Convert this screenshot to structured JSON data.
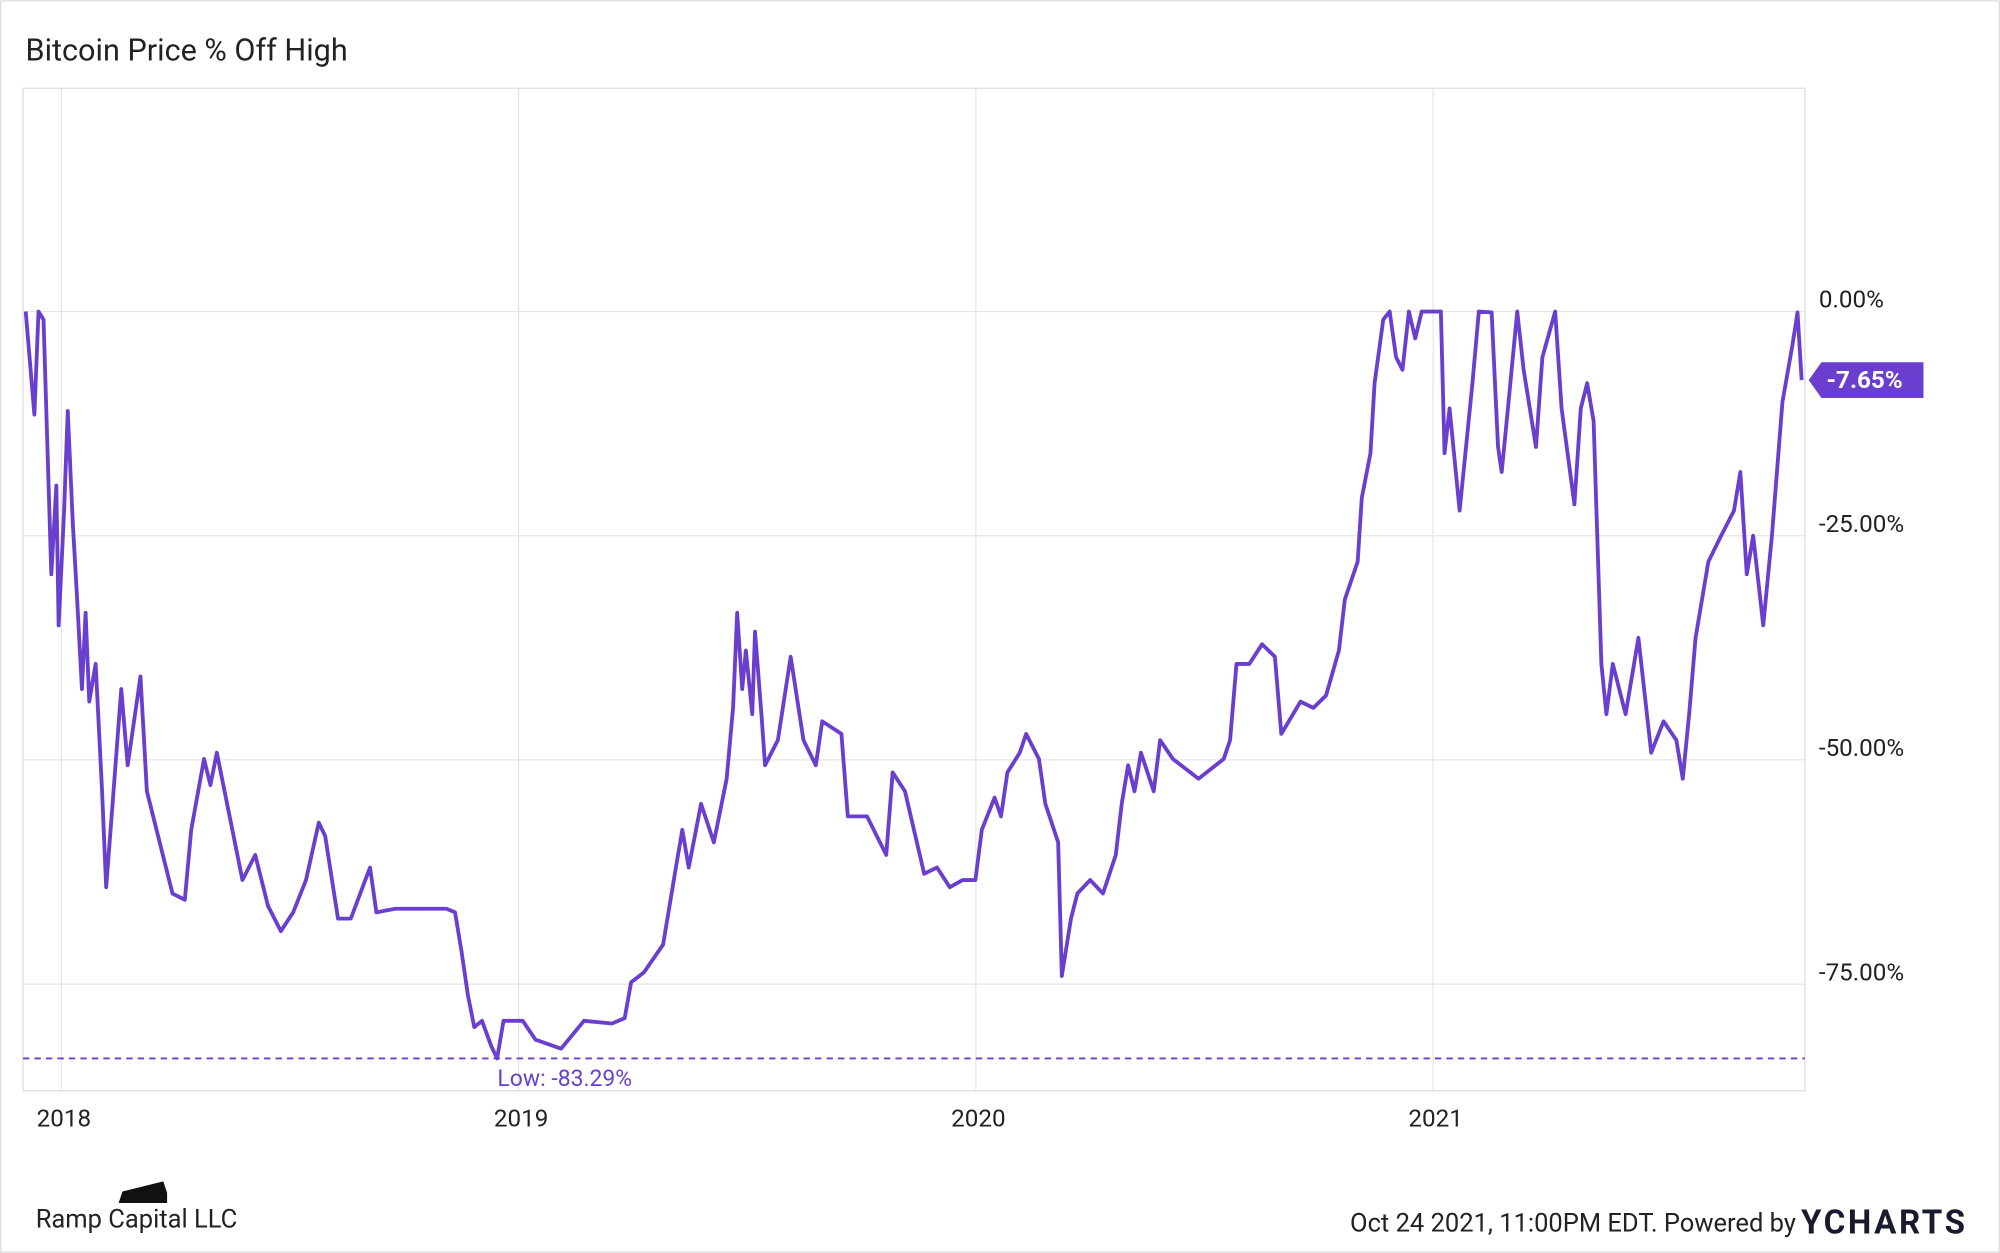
{
  "chart_data": {
    "type": "line",
    "title": "Bitcoin Price % Off High",
    "x": [
      2017.922,
      2017.941,
      2017.95,
      2017.961,
      2017.978,
      2017.989,
      2017.994,
      2018.006,
      2018.014,
      2018.025,
      2018.033,
      2018.045,
      2018.053,
      2018.061,
      2018.075,
      2018.089,
      2018.098,
      2018.112,
      2018.131,
      2018.145,
      2018.173,
      2018.187,
      2018.215,
      2018.243,
      2018.27,
      2018.284,
      2018.312,
      2018.326,
      2018.34,
      2018.368,
      2018.396,
      2018.424,
      2018.452,
      2018.48,
      2018.507,
      2018.535,
      2018.563,
      2018.577,
      2018.605,
      2018.633,
      2018.675,
      2018.689,
      2018.73,
      2018.786,
      2018.842,
      2018.861,
      2018.875,
      2018.889,
      2018.903,
      2018.92,
      2018.94,
      2018.953,
      2018.967,
      2019.009,
      2019.037,
      2019.093,
      2019.143,
      2019.204,
      2019.232,
      2019.246,
      2019.274,
      2019.316,
      2019.344,
      2019.358,
      2019.372,
      2019.399,
      2019.427,
      2019.455,
      2019.469,
      2019.478,
      2019.489,
      2019.497,
      2019.511,
      2019.517,
      2019.531,
      2019.539,
      2019.567,
      2019.595,
      2019.623,
      2019.65,
      2019.664,
      2019.706,
      2019.72,
      2019.762,
      2019.804,
      2019.818,
      2019.845,
      2019.887,
      2019.915,
      2019.943,
      2019.971,
      2019.999,
      2020.013,
      2020.041,
      2020.055,
      2020.069,
      2020.096,
      2020.11,
      2020.138,
      2020.152,
      2020.18,
      2020.188,
      2020.208,
      2020.222,
      2020.25,
      2020.278,
      2020.306,
      2020.319,
      2020.333,
      2020.347,
      2020.361,
      2020.389,
      2020.403,
      2020.431,
      2020.487,
      2020.542,
      2020.556,
      2020.57,
      2020.598,
      2020.626,
      2020.654,
      2020.668,
      2020.71,
      2020.738,
      2020.766,
      2020.794,
      2020.807,
      2020.835,
      2020.844,
      2020.863,
      2020.872,
      2020.891,
      2020.905,
      2020.919,
      2020.933,
      2020.947,
      2020.961,
      2020.975,
      2021.017,
      2021.025,
      2021.036,
      2021.058,
      2021.072,
      2021.086,
      2021.1,
      2021.128,
      2021.142,
      2021.15,
      2021.161,
      2021.184,
      2021.198,
      2021.225,
      2021.239,
      2021.267,
      2021.281,
      2021.309,
      2021.323,
      2021.337,
      2021.351,
      2021.359,
      2021.368,
      2021.379,
      2021.393,
      2021.421,
      2021.449,
      2021.477,
      2021.504,
      2021.532,
      2021.546,
      2021.56,
      2021.574,
      2021.602,
      2021.63,
      2021.658,
      2021.672,
      2021.686,
      2021.7,
      2021.722,
      2021.741,
      2021.764,
      2021.786,
      2021.797,
      2021.806
    ],
    "series": [
      {
        "name": "Bitcoin Price % Off High",
        "color": "#6a3fd0",
        "values": [
          0,
          -11.5,
          0,
          -0.9,
          -29.3,
          -19.4,
          -35.0,
          -22.2,
          -11.1,
          -23.6,
          -30.7,
          -42.1,
          -33.6,
          -43.5,
          -39.3,
          -53.5,
          -64.2,
          -54.9,
          -42.1,
          -50.6,
          -40.7,
          -53.5,
          -59.2,
          -64.9,
          -65.6,
          -57.8,
          -49.9,
          -52.8,
          -49.2,
          -56.3,
          -63.4,
          -60.6,
          -66.3,
          -69.1,
          -67.0,
          -63.4,
          -57.0,
          -58.5,
          -67.7,
          -67.7,
          -62.0,
          -67.0,
          -66.6,
          -66.6,
          -66.6,
          -67.0,
          -71.3,
          -76.2,
          -79.8,
          -79.1,
          -81.9,
          -83.29,
          -79.1,
          -79.1,
          -81.2,
          -82.2,
          -79.1,
          -79.4,
          -78.8,
          -74.8,
          -73.7,
          -70.6,
          -62.0,
          -57.8,
          -62.0,
          -54.9,
          -59.2,
          -52.1,
          -44.2,
          -33.6,
          -42.1,
          -37.8,
          -44.9,
          -35.7,
          -44.9,
          -50.6,
          -47.8,
          -38.5,
          -47.8,
          -50.6,
          -45.7,
          -47.1,
          -56.3,
          -56.3,
          -60.6,
          -51.4,
          -53.5,
          -62.7,
          -62.0,
          -64.2,
          -63.4,
          -63.4,
          -57.8,
          -54.2,
          -56.3,
          -51.4,
          -49.2,
          -47.1,
          -49.9,
          -54.9,
          -59.2,
          -74.1,
          -67.7,
          -64.9,
          -63.4,
          -64.9,
          -60.6,
          -54.9,
          -50.6,
          -53.5,
          -49.2,
          -53.5,
          -47.8,
          -49.9,
          -52.1,
          -49.9,
          -47.8,
          -39.3,
          -39.3,
          -37.1,
          -38.5,
          -47.1,
          -43.5,
          -44.2,
          -42.8,
          -37.8,
          -32.1,
          -27.9,
          -20.8,
          -15.8,
          -8.0,
          -0.9,
          0,
          -5.1,
          -6.5,
          0,
          -3.0,
          0,
          0,
          -15.8,
          -10.8,
          -22.2,
          -15.1,
          -8.0,
          0,
          -0.1,
          -15.1,
          -17.9,
          -12.2,
          0,
          -6.5,
          -15.1,
          -5.1,
          0,
          -10.8,
          -21.5,
          -10.8,
          -8.0,
          -12.2,
          -25.0,
          -39.3,
          -44.9,
          -39.3,
          -44.9,
          -36.4,
          -49.2,
          -45.7,
          -47.8,
          -52.1,
          -44.9,
          -36.4,
          -27.9,
          -25.0,
          -22.2,
          -17.9,
          -29.3,
          -25.0,
          -35.0,
          -25.0,
          -10.1,
          -3.7,
          -0.1,
          -7.65
        ]
      }
    ],
    "xlim": [
      2017.916,
      2021.813
    ],
    "xticks": [
      2018,
      2019,
      2020,
      2021
    ],
    "ylim": [
      -86.9,
      24.9
    ],
    "yticks": [
      {
        "value": 0,
        "label": "0.00%"
      },
      {
        "value": -25,
        "label": "-25.00%"
      },
      {
        "value": -50,
        "label": "-50.00%"
      },
      {
        "value": -75,
        "label": "-75.00%"
      }
    ],
    "grid": true,
    "annotations": [
      {
        "text": "Low: -83.29%",
        "y": -83.29
      },
      {
        "text": "-7.65%",
        "y": -7.65
      }
    ],
    "source": "Ramp Capital LLC",
    "footer": "Oct 24 2021, 11:00PM EDT. Powered by",
    "brand": "YCHARTS"
  }
}
